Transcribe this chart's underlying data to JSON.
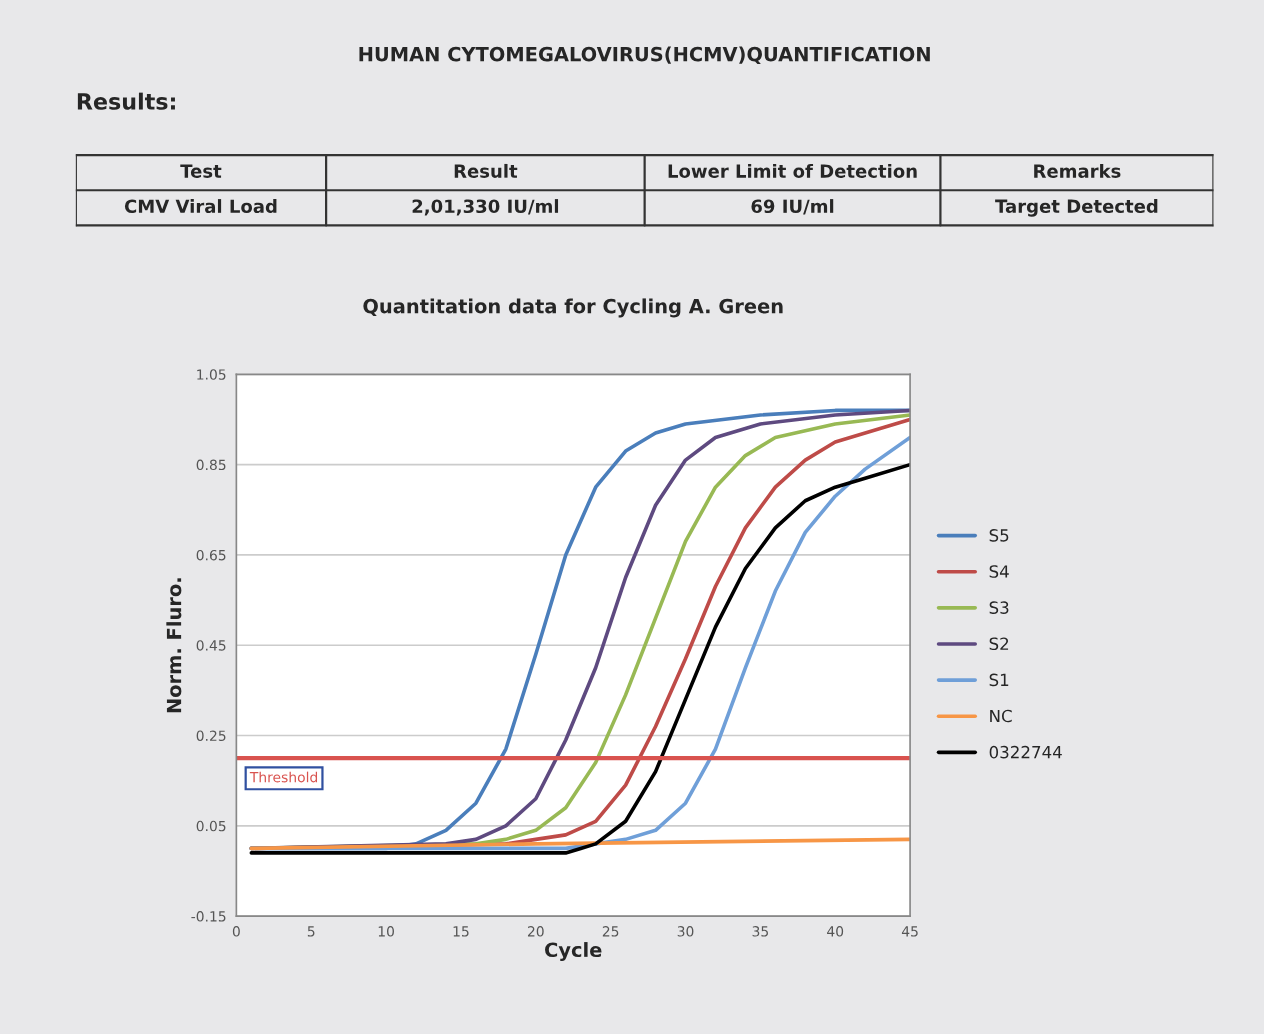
{
  "chart_data": [
    {
      "type": "other",
      "title": "HUMAN CYTOMEGALOVIRUS(HCMV)QUANTIFICATION",
      "annotations": [
        "Results:",
        "Test",
        "Result",
        "Lower Limit of Detection",
        "Remarks",
        "CMV Viral Load",
        "2,01,330 IU/ml",
        "69 IU/ml",
        "Target Detected"
      ]
    },
    {
      "type": "line",
      "title": "Quantitation data for Cycling A. Green",
      "xlabel": "Cycle",
      "ylabel": "Norm. Fluro.",
      "xlim": [
        0,
        45
      ],
      "xticks": [
        0,
        5,
        10,
        15,
        20,
        25,
        30,
        35,
        40,
        45
      ],
      "ylim": [
        -0.15,
        1.05
      ],
      "yticks": [
        -0.15,
        0.05,
        0.25,
        0.45,
        0.65,
        0.85,
        1.05
      ],
      "grid": "y",
      "legend": "right",
      "marker": "none",
      "line_style": "solid",
      "ref_lines": [
        {
          "axis": "y",
          "value": 0.2,
          "label": "Threshold",
          "color": "#d9534f"
        }
      ],
      "series": [
        {
          "name": "S5",
          "color": "#4a7ebb",
          "x": [
            1,
            10,
            12,
            14,
            16,
            18,
            20,
            22,
            24,
            26,
            28,
            30,
            35,
            40,
            45
          ],
          "values": [
            0.0,
            0.0,
            0.01,
            0.04,
            0.1,
            0.22,
            0.43,
            0.65,
            0.8,
            0.88,
            0.92,
            0.94,
            0.96,
            0.97,
            0.97
          ]
        },
        {
          "name": "S4",
          "color": "#be4b48",
          "x": [
            1,
            18,
            20,
            22,
            24,
            26,
            28,
            30,
            32,
            34,
            36,
            38,
            40,
            45
          ],
          "values": [
            0.0,
            0.01,
            0.02,
            0.03,
            0.06,
            0.14,
            0.27,
            0.42,
            0.58,
            0.71,
            0.8,
            0.86,
            0.9,
            0.95
          ]
        },
        {
          "name": "S3",
          "color": "#98b954",
          "x": [
            1,
            16,
            18,
            20,
            22,
            24,
            26,
            28,
            30,
            32,
            34,
            36,
            40,
            45
          ],
          "values": [
            0.0,
            0.01,
            0.02,
            0.04,
            0.09,
            0.19,
            0.34,
            0.51,
            0.68,
            0.8,
            0.87,
            0.91,
            0.94,
            0.96
          ]
        },
        {
          "name": "S2",
          "color": "#5e4a80",
          "x": [
            1,
            14,
            16,
            18,
            20,
            22,
            24,
            26,
            28,
            30,
            32,
            35,
            40,
            45
          ],
          "values": [
            0.0,
            0.01,
            0.02,
            0.05,
            0.11,
            0.24,
            0.4,
            0.6,
            0.76,
            0.86,
            0.91,
            0.94,
            0.96,
            0.97
          ]
        },
        {
          "name": "S1",
          "color": "#6f9fd8",
          "x": [
            1,
            22,
            24,
            26,
            28,
            30,
            32,
            34,
            36,
            38,
            40,
            42,
            45
          ],
          "values": [
            0.0,
            0.0,
            0.01,
            0.02,
            0.04,
            0.1,
            0.22,
            0.4,
            0.57,
            0.7,
            0.78,
            0.84,
            0.91
          ]
        },
        {
          "name": "NC",
          "color": "#f79646",
          "x": [
            1,
            20,
            45
          ],
          "values": [
            0.0,
            0.01,
            0.02
          ]
        },
        {
          "name": "0322744",
          "color": "#000000",
          "x": [
            1,
            22,
            23,
            24,
            26,
            28,
            30,
            32,
            34,
            36,
            38,
            40,
            42,
            45
          ],
          "values": [
            -0.01,
            -0.01,
            0.0,
            0.01,
            0.06,
            0.17,
            0.33,
            0.49,
            0.62,
            0.71,
            0.77,
            0.8,
            0.82,
            0.85
          ]
        }
      ]
    }
  ]
}
